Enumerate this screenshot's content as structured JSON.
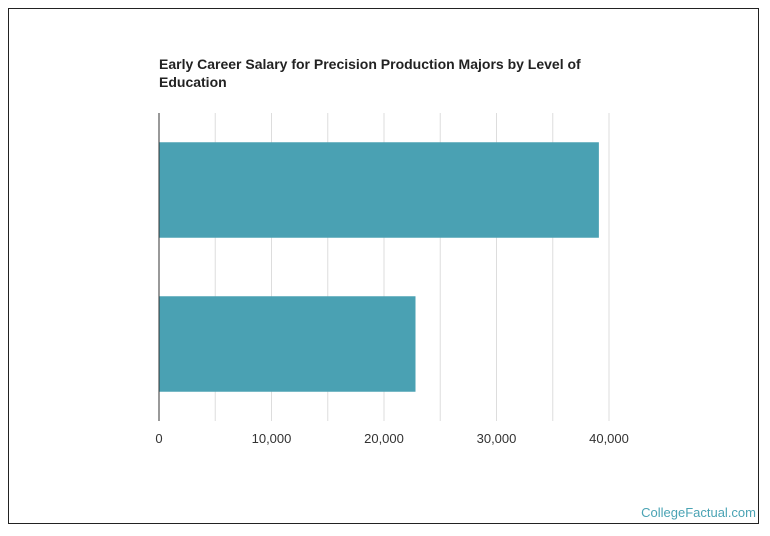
{
  "chart_data": {
    "type": "bar",
    "orientation": "horizontal",
    "title": "Early Career Salary for Precision Production Majors by Level of Education",
    "categories": [
      "",
      ""
    ],
    "values": [
      39100,
      22800
    ],
    "xlim": [
      0,
      40000
    ],
    "xticks": [
      0,
      10000,
      20000,
      30000,
      40000
    ],
    "xtick_labels": [
      "0",
      "10,000",
      "20,000",
      "30,000",
      "40,000"
    ],
    "xlabel": "",
    "ylabel": "",
    "grid": true,
    "bar_color": "#4aa1b3",
    "grid_color": "#dddddd"
  },
  "watermark": "CollegeFactual.com"
}
